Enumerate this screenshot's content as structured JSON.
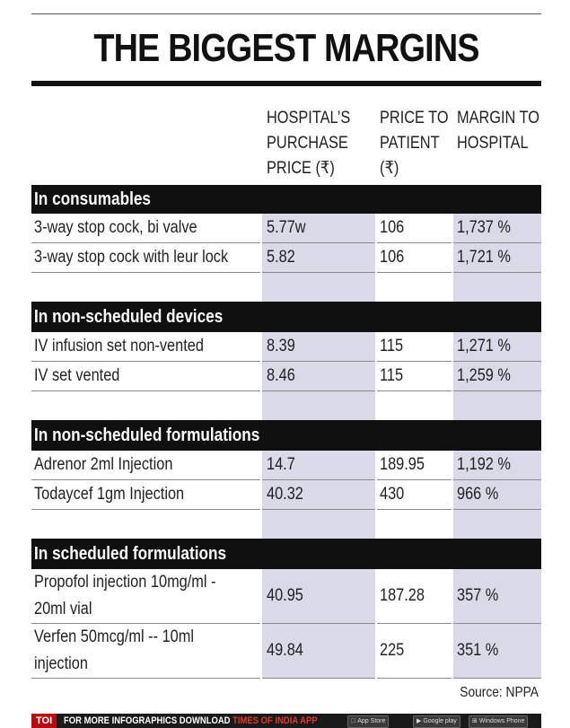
{
  "title": "THE BIGGEST MARGINS",
  "columns": {
    "purchase": [
      "HOSPITAL’S",
      "PURCHASE",
      "PRICE (₹)"
    ],
    "patient": [
      "PRICE TO",
      "PATIENT",
      "(₹)"
    ],
    "margin": [
      "MARGIN TO",
      "HOSPITAL"
    ]
  },
  "sections": [
    {
      "heading": "In consumables",
      "rows": [
        {
          "item": "3-way stop cock, bi valve",
          "purchase": "5.77w",
          "patient": "106",
          "margin": "1,737 %"
        },
        {
          "item": "3-way stop cock with leur lock",
          "purchase": "5.82",
          "patient": "106",
          "margin": "1,721 %"
        }
      ]
    },
    {
      "heading": "In non-scheduled devices",
      "rows": [
        {
          "item": "IV infusion set non-vented",
          "purchase": "8.39",
          "patient": "115",
          "margin": "1,271 %"
        },
        {
          "item": "IV set vented",
          "purchase": "8.46",
          "patient": "115",
          "margin": "1,259 %"
        }
      ]
    },
    {
      "heading": "In non-scheduled formulations",
      "rows": [
        {
          "item": "Adrenor 2ml Injection",
          "purchase": "14.7",
          "patient": "189.95",
          "margin": "1,192 %"
        },
        {
          "item": "Todaycef 1gm Injection",
          "purchase": "40.32",
          "patient": "430",
          "margin": "966 %"
        }
      ]
    },
    {
      "heading": "In scheduled formulations",
      "rows": [
        {
          "item_lines": [
            "Propofol injection 10mg/ml -",
            "20ml vial"
          ],
          "purchase": "40.95",
          "patient": "187.28",
          "margin": "357 %"
        },
        {
          "item_lines": [
            "Verfen 50mcg/ml -- 10ml",
            "injection"
          ],
          "purchase": "49.84",
          "patient": "225",
          "margin": "351 %"
        }
      ]
    }
  ],
  "source": "Source: NPPA",
  "footer": {
    "brand": "TOI",
    "text_prefix": "FOR MORE  INFOGRAPHICS DOWNLOAD ",
    "text_highlight": "TIMES OF INDIA APP",
    "badges": [
      "App Store",
      "Google play",
      "Windows Phone"
    ],
    "badge_small": "Available on the"
  },
  "colors": {
    "band": "#101010",
    "shade": "#d9d9e8",
    "toi_red": "#b50d12"
  }
}
